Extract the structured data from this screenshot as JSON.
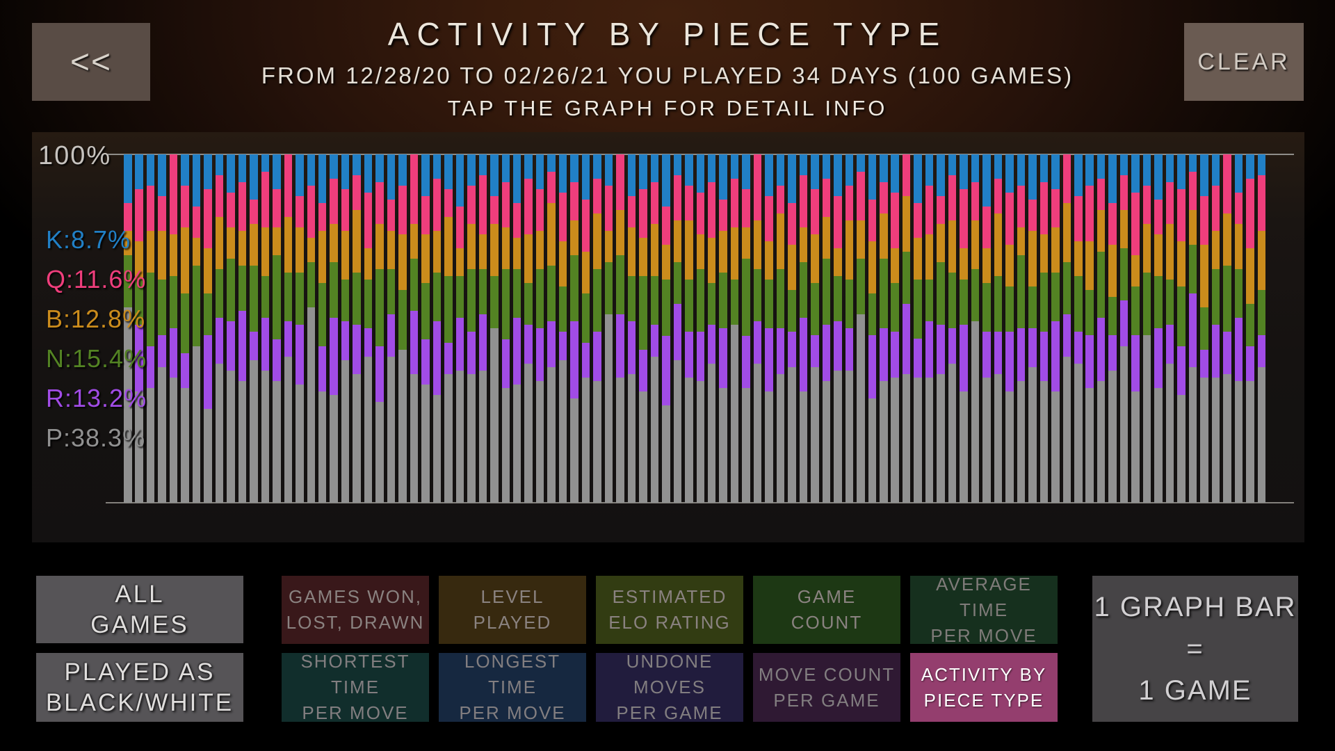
{
  "header": {
    "back_label": "<<",
    "clear_label": "CLEAR",
    "title": "ACTIVITY BY PIECE TYPE",
    "subtitle": "FROM 12/28/20 TO 02/26/21 YOU PLAYED 34 DAYS (100 GAMES)",
    "hint": "TAP THE GRAPH FOR DETAIL INFO"
  },
  "chart_data": {
    "type": "bar",
    "stacked": true,
    "units": "percent of moves per game",
    "bar_meaning": "1 graph bar = 1 game",
    "top_axis_label": "100%",
    "ylim": [
      0,
      100
    ],
    "grid": "top and bottom line only",
    "legend_position": "left",
    "legend": [
      {
        "key": "K",
        "label": "K:8.7%",
        "piece": "King",
        "value": 8.7,
        "color": "#2180c6"
      },
      {
        "key": "Q",
        "label": "Q:11.6%",
        "piece": "Queen",
        "value": 11.6,
        "color": "#ef3e7c"
      },
      {
        "key": "B",
        "label": "B:12.8%",
        "piece": "Bishop",
        "value": 12.8,
        "color": "#cb8c1c"
      },
      {
        "key": "N",
        "label": "N:15.4%",
        "piece": "Knight",
        "value": 15.4,
        "color": "#538323"
      },
      {
        "key": "R",
        "label": "R:13.2%",
        "piece": "Rook",
        "value": 13.2,
        "color": "#a14ce6"
      },
      {
        "key": "P",
        "label": "P:38.3%",
        "piece": "Pawn",
        "value": 38.3,
        "color": "#919191"
      }
    ],
    "series_order": [
      "K",
      "Q",
      "B",
      "N",
      "R",
      "P"
    ],
    "colors": {
      "K": "#2180c6",
      "Q": "#ef3e7c",
      "B": "#cb8c1c",
      "N": "#538323",
      "R": "#a14ce6",
      "P": "#919191"
    },
    "stack_order_top_to_bottom": [
      "K",
      "Q",
      "B",
      "N",
      "R",
      "P"
    ],
    "bars": [
      [
        14,
        8,
        7,
        15,
        0,
        56
      ],
      [
        10,
        15,
        11,
        13,
        19,
        32
      ],
      [
        9,
        13,
        12,
        21,
        12,
        33
      ],
      [
        12,
        10,
        14,
        16,
        9,
        39
      ],
      [
        0,
        23,
        12,
        15,
        14,
        36
      ],
      [
        9,
        12,
        19,
        17,
        10,
        33
      ],
      [
        15,
        9,
        8,
        23,
        0,
        45
      ],
      [
        10,
        17,
        13,
        12,
        21,
        27
      ],
      [
        6,
        12,
        15,
        14,
        13,
        40
      ],
      [
        11,
        10,
        9,
        18,
        14,
        38
      ],
      [
        8,
        14,
        10,
        13,
        20,
        35
      ],
      [
        13,
        7,
        12,
        19,
        8,
        41
      ],
      [
        5,
        16,
        14,
        12,
        15,
        38
      ],
      [
        10,
        11,
        8,
        24,
        12,
        35
      ],
      [
        0,
        18,
        16,
        14,
        10,
        42
      ],
      [
        12,
        9,
        13,
        15,
        17,
        34
      ],
      [
        9,
        15,
        7,
        13,
        0,
        56
      ],
      [
        14,
        8,
        15,
        18,
        13,
        32
      ],
      [
        7,
        13,
        11,
        16,
        22,
        31
      ],
      [
        10,
        12,
        14,
        12,
        11,
        41
      ],
      [
        6,
        10,
        18,
        15,
        14,
        37
      ],
      [
        11,
        16,
        9,
        14,
        8,
        42
      ],
      [
        8,
        12,
        13,
        22,
        16,
        29
      ],
      [
        13,
        9,
        11,
        13,
        12,
        42
      ],
      [
        9,
        14,
        16,
        17,
        0,
        44
      ],
      [
        0,
        20,
        10,
        15,
        18,
        37
      ],
      [
        12,
        11,
        14,
        16,
        13,
        34
      ],
      [
        7,
        15,
        12,
        14,
        21,
        31
      ],
      [
        10,
        8,
        17,
        19,
        9,
        37
      ],
      [
        15,
        12,
        8,
        12,
        15,
        38
      ],
      [
        9,
        11,
        13,
        18,
        12,
        37
      ],
      [
        6,
        17,
        10,
        13,
        16,
        38
      ],
      [
        12,
        8,
        15,
        15,
        0,
        50
      ],
      [
        8,
        13,
        12,
        20,
        14,
        33
      ],
      [
        14,
        10,
        9,
        14,
        19,
        34
      ],
      [
        7,
        16,
        14,
        12,
        11,
        40
      ],
      [
        10,
        12,
        11,
        17,
        15,
        35
      ],
      [
        5,
        9,
        18,
        16,
        13,
        39
      ],
      [
        11,
        14,
        13,
        13,
        8,
        41
      ],
      [
        8,
        11,
        10,
        19,
        22,
        30
      ],
      [
        13,
        15,
        12,
        14,
        10,
        36
      ],
      [
        7,
        10,
        16,
        18,
        14,
        35
      ],
      [
        9,
        13,
        9,
        15,
        0,
        54
      ],
      [
        0,
        16,
        13,
        17,
        18,
        36
      ],
      [
        12,
        9,
        14,
        13,
        15,
        37
      ],
      [
        10,
        14,
        11,
        21,
        12,
        32
      ],
      [
        8,
        12,
        15,
        14,
        9,
        42
      ],
      [
        15,
        11,
        10,
        16,
        20,
        28
      ],
      [
        6,
        13,
        12,
        12,
        16,
        41
      ],
      [
        9,
        10,
        17,
        15,
        13,
        36
      ],
      [
        11,
        12,
        10,
        18,
        14,
        35
      ],
      [
        8,
        16,
        13,
        12,
        11,
        40
      ],
      [
        13,
        9,
        12,
        16,
        17,
        33
      ],
      [
        7,
        14,
        15,
        13,
        0,
        51
      ],
      [
        10,
        11,
        9,
        22,
        15,
        33
      ],
      [
        0,
        19,
        14,
        15,
        12,
        40
      ],
      [
        12,
        13,
        11,
        14,
        18,
        32
      ],
      [
        9,
        8,
        16,
        17,
        13,
        37
      ],
      [
        14,
        12,
        13,
        12,
        10,
        39
      ],
      [
        6,
        15,
        10,
        16,
        21,
        32
      ],
      [
        10,
        13,
        14,
        15,
        9,
        39
      ],
      [
        7,
        11,
        12,
        19,
        16,
        35
      ],
      [
        12,
        15,
        8,
        13,
        14,
        38
      ],
      [
        9,
        10,
        17,
        14,
        12,
        38
      ],
      [
        5,
        14,
        11,
        16,
        0,
        54
      ],
      [
        13,
        12,
        15,
        12,
        18,
        30
      ],
      [
        8,
        9,
        13,
        20,
        15,
        35
      ],
      [
        11,
        16,
        10,
        14,
        13,
        36
      ],
      [
        0,
        12,
        16,
        15,
        20,
        37
      ],
      [
        14,
        10,
        12,
        17,
        11,
        36
      ],
      [
        9,
        14,
        13,
        12,
        16,
        36
      ],
      [
        12,
        8,
        11,
        18,
        14,
        37
      ],
      [
        6,
        13,
        15,
        16,
        10,
        40
      ],
      [
        10,
        17,
        9,
        13,
        19,
        32
      ],
      [
        8,
        11,
        14,
        15,
        0,
        52
      ],
      [
        15,
        12,
        10,
        14,
        13,
        36
      ],
      [
        7,
        10,
        18,
        16,
        12,
        37
      ],
      [
        11,
        15,
        12,
        13,
        17,
        32
      ],
      [
        9,
        12,
        8,
        21,
        15,
        35
      ],
      [
        13,
        9,
        16,
        12,
        11,
        39
      ],
      [
        8,
        15,
        11,
        17,
        14,
        35
      ],
      [
        10,
        11,
        13,
        14,
        20,
        32
      ],
      [
        0,
        14,
        17,
        15,
        12,
        42
      ],
      [
        12,
        13,
        10,
        16,
        9,
        40
      ],
      [
        9,
        16,
        14,
        13,
        15,
        33
      ],
      [
        7,
        9,
        12,
        19,
        18,
        35
      ],
      [
        14,
        12,
        15,
        11,
        10,
        38
      ],
      [
        6,
        10,
        11,
        15,
        13,
        45
      ],
      [
        11,
        18,
        9,
        14,
        16,
        32
      ],
      [
        9,
        11,
        14,
        18,
        0,
        48
      ],
      [
        13,
        10,
        12,
        15,
        17,
        33
      ],
      [
        8,
        12,
        16,
        13,
        11,
        40
      ],
      [
        10,
        15,
        13,
        17,
        14,
        31
      ],
      [
        5,
        11,
        10,
        14,
        21,
        39
      ],
      [
        12,
        14,
        18,
        12,
        8,
        36
      ],
      [
        9,
        13,
        11,
        16,
        15,
        36
      ],
      [
        0,
        17,
        15,
        19,
        12,
        37
      ],
      [
        11,
        9,
        13,
        14,
        18,
        35
      ],
      [
        7,
        20,
        16,
        12,
        10,
        35
      ],
      [
        6,
        16,
        17,
        13,
        9,
        39
      ]
    ]
  },
  "side_buttons": {
    "all_games": {
      "line1": "ALL",
      "line2": "GAMES"
    },
    "played_as": {
      "line1": "PLAYED AS",
      "line2": "BLACK/WHITE"
    }
  },
  "selector": {
    "items": [
      {
        "id": "games-won",
        "line1": "GAMES WON,",
        "line2": "LOST, DRAWN",
        "bg": "#39181a",
        "fg": "#8a8280",
        "selected": false
      },
      {
        "id": "shortest",
        "line1": "SHORTEST TIME",
        "line2": "PER MOVE",
        "bg": "#112e2c",
        "fg": "#827e80",
        "selected": false
      },
      {
        "id": "level",
        "line1": "LEVEL",
        "line2": "PLAYED",
        "bg": "#37290f",
        "fg": "#8a8280",
        "selected": false
      },
      {
        "id": "longest",
        "line1": "LONGEST TIME",
        "line2": "PER MOVE",
        "bg": "#162840",
        "fg": "#827e80",
        "selected": false
      },
      {
        "id": "estimated",
        "line1": "ESTIMATED",
        "line2": "ELO RATING",
        "bg": "#323c12",
        "fg": "#8a8280",
        "selected": false
      },
      {
        "id": "undone",
        "line1": "UNDONE MOVES",
        "line2": "PER GAME",
        "bg": "#211c3d",
        "fg": "#827e80",
        "selected": false
      },
      {
        "id": "game-count",
        "line1": "GAME",
        "line2": "COUNT",
        "bg": "#1d3814",
        "fg": "#8a8280",
        "selected": false
      },
      {
        "id": "move-count",
        "line1": "MOVE COUNT",
        "line2": "PER GAME",
        "bg": "#2f1933",
        "fg": "#827e80",
        "selected": false
      },
      {
        "id": "average",
        "line1": "AVERAGE TIME",
        "line2": "PER MOVE",
        "bg": "#16301e",
        "fg": "#7f7b79",
        "selected": false
      },
      {
        "id": "activity",
        "line1": "ACTIVITY BY",
        "line2": "PIECE TYPE",
        "bg": "#943e6e",
        "fg": "#ffffff",
        "selected": true
      }
    ]
  },
  "ratio_panel": {
    "line1": "1 GRAPH BAR",
    "line2": "=",
    "line3": "1 GAME"
  }
}
